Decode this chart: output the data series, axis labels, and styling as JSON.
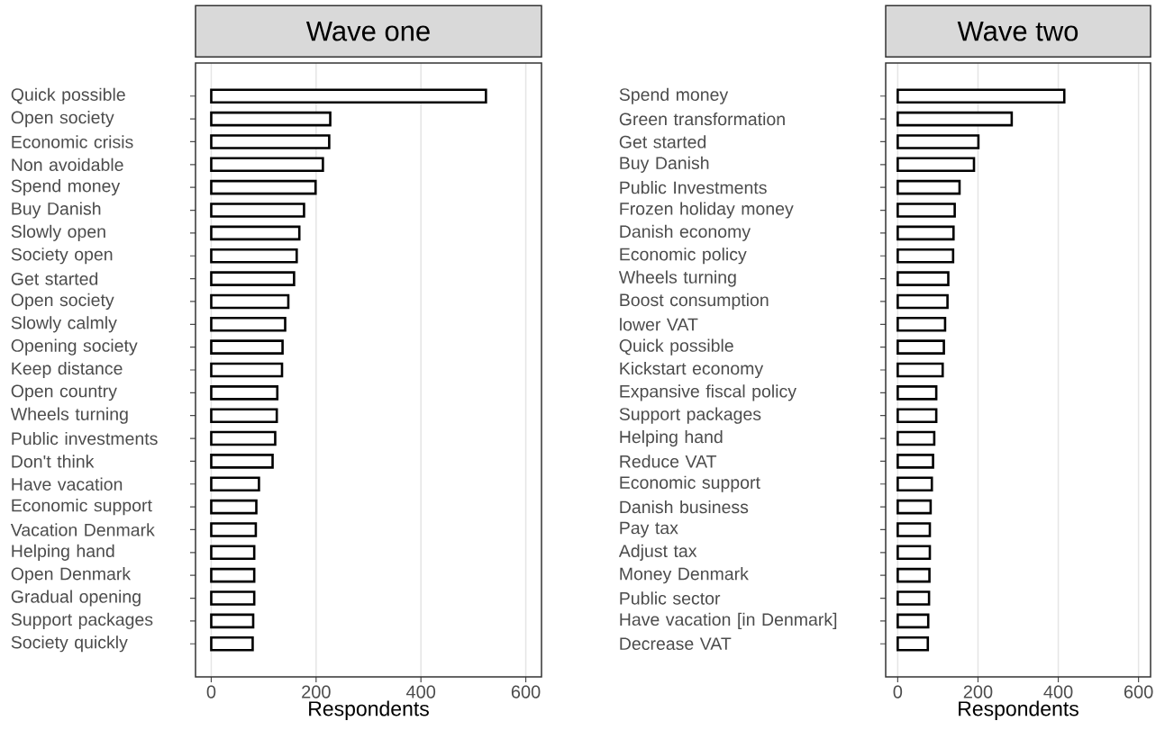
{
  "chart_data": [
    {
      "type": "bar",
      "orientation": "horizontal",
      "title": "Wave one",
      "xlabel": "Respondents",
      "color": "#000000",
      "grid": "x",
      "xlim": [
        -30,
        630
      ],
      "xticks": [
        0,
        200,
        400,
        600
      ],
      "categories": [
        "Quick possible",
        "Open society",
        "Economic crisis",
        "Non avoidable",
        "Spend money",
        "Buy Danish",
        "Slowly open",
        "Society open",
        "Get started",
        "Open society",
        "Slowly calmly",
        "Opening society",
        "Keep distance",
        "Open country",
        "Wheels turning",
        "Public investments",
        "Don't think",
        "Have vacation",
        "Economic support",
        "Vacation Denmark",
        "Helping hand",
        "Open Denmark",
        "Gradual opening",
        "Support packages",
        "Society quickly"
      ],
      "values": [
        524,
        227,
        225,
        213,
        199,
        177,
        168,
        163,
        158,
        147,
        141,
        136,
        135,
        126,
        125,
        122,
        117,
        91,
        86,
        85,
        82,
        82,
        82,
        80,
        79
      ]
    },
    {
      "type": "bar",
      "orientation": "horizontal",
      "title": "Wave two",
      "xlabel": "Respondents",
      "color": "#000000",
      "grid": "x",
      "xlim": [
        -30,
        630
      ],
      "xticks": [
        0,
        200,
        400,
        600
      ],
      "categories": [
        "Spend money",
        "Green transformation",
        "Get started",
        "Buy Danish",
        "Public Investments",
        "Frozen holiday money",
        "Danish economy",
        "Economic policy",
        "Wheels turning",
        "Boost consumption",
        "lower VAT",
        "Quick possible",
        "Kickstart economy",
        "Expansive fiscal policy",
        "Support packages",
        "Helping hand",
        "Reduce VAT",
        "Economic support",
        "Danish business",
        "Pay tax",
        "Adjust tax",
        "Money Denmark",
        "Public sector",
        "Have vacation [in Denmark]",
        "Decrease VAT"
      ],
      "values": [
        415,
        284,
        201,
        190,
        154,
        142,
        139,
        138,
        126,
        124,
        118,
        115,
        112,
        96,
        96,
        91,
        88,
        85,
        82,
        80,
        80,
        79,
        78,
        76,
        75
      ]
    }
  ]
}
